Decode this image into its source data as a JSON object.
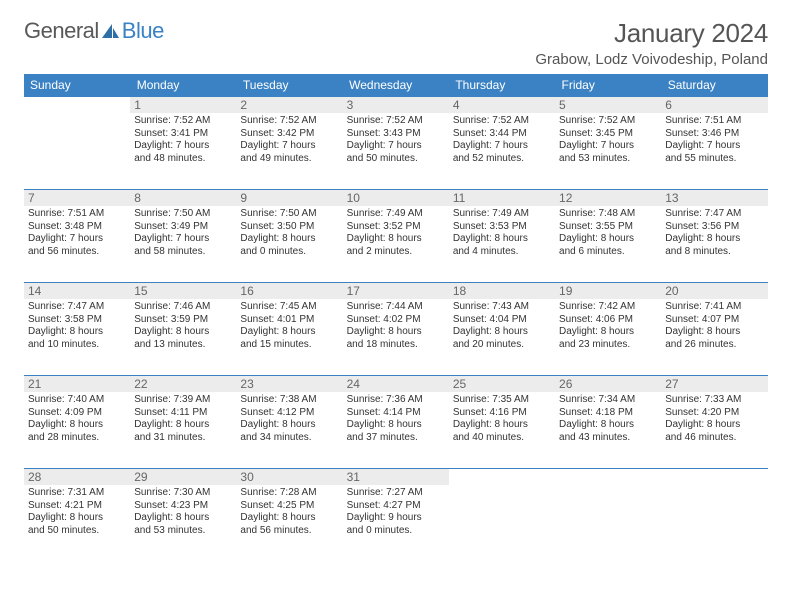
{
  "brand": {
    "word1": "General",
    "word2": "Blue"
  },
  "title": "January 2024",
  "location": "Grabow, Lodz Voivodeship, Poland",
  "colors": {
    "header_bg": "#3b82c4",
    "header_text": "#ffffff",
    "daynum_bg": "#ececec",
    "rule": "#3b82c4",
    "text": "#333333",
    "muted": "#666666",
    "brand_gray": "#595959",
    "brand_blue": "#3b82c4"
  },
  "fonts": {
    "family": "Arial",
    "title_size": 26,
    "th_size": 12,
    "cell_size": 10
  },
  "weekdays": [
    "Sunday",
    "Monday",
    "Tuesday",
    "Wednesday",
    "Thursday",
    "Friday",
    "Saturday"
  ],
  "grid": [
    [
      null,
      {
        "n": "1",
        "sr": "Sunrise: 7:52 AM",
        "ss": "Sunset: 3:41 PM",
        "d1": "Daylight: 7 hours",
        "d2": "and 48 minutes."
      },
      {
        "n": "2",
        "sr": "Sunrise: 7:52 AM",
        "ss": "Sunset: 3:42 PM",
        "d1": "Daylight: 7 hours",
        "d2": "and 49 minutes."
      },
      {
        "n": "3",
        "sr": "Sunrise: 7:52 AM",
        "ss": "Sunset: 3:43 PM",
        "d1": "Daylight: 7 hours",
        "d2": "and 50 minutes."
      },
      {
        "n": "4",
        "sr": "Sunrise: 7:52 AM",
        "ss": "Sunset: 3:44 PM",
        "d1": "Daylight: 7 hours",
        "d2": "and 52 minutes."
      },
      {
        "n": "5",
        "sr": "Sunrise: 7:52 AM",
        "ss": "Sunset: 3:45 PM",
        "d1": "Daylight: 7 hours",
        "d2": "and 53 minutes."
      },
      {
        "n": "6",
        "sr": "Sunrise: 7:51 AM",
        "ss": "Sunset: 3:46 PM",
        "d1": "Daylight: 7 hours",
        "d2": "and 55 minutes."
      }
    ],
    [
      {
        "n": "7",
        "sr": "Sunrise: 7:51 AM",
        "ss": "Sunset: 3:48 PM",
        "d1": "Daylight: 7 hours",
        "d2": "and 56 minutes."
      },
      {
        "n": "8",
        "sr": "Sunrise: 7:50 AM",
        "ss": "Sunset: 3:49 PM",
        "d1": "Daylight: 7 hours",
        "d2": "and 58 minutes."
      },
      {
        "n": "9",
        "sr": "Sunrise: 7:50 AM",
        "ss": "Sunset: 3:50 PM",
        "d1": "Daylight: 8 hours",
        "d2": "and 0 minutes."
      },
      {
        "n": "10",
        "sr": "Sunrise: 7:49 AM",
        "ss": "Sunset: 3:52 PM",
        "d1": "Daylight: 8 hours",
        "d2": "and 2 minutes."
      },
      {
        "n": "11",
        "sr": "Sunrise: 7:49 AM",
        "ss": "Sunset: 3:53 PM",
        "d1": "Daylight: 8 hours",
        "d2": "and 4 minutes."
      },
      {
        "n": "12",
        "sr": "Sunrise: 7:48 AM",
        "ss": "Sunset: 3:55 PM",
        "d1": "Daylight: 8 hours",
        "d2": "and 6 minutes."
      },
      {
        "n": "13",
        "sr": "Sunrise: 7:47 AM",
        "ss": "Sunset: 3:56 PM",
        "d1": "Daylight: 8 hours",
        "d2": "and 8 minutes."
      }
    ],
    [
      {
        "n": "14",
        "sr": "Sunrise: 7:47 AM",
        "ss": "Sunset: 3:58 PM",
        "d1": "Daylight: 8 hours",
        "d2": "and 10 minutes."
      },
      {
        "n": "15",
        "sr": "Sunrise: 7:46 AM",
        "ss": "Sunset: 3:59 PM",
        "d1": "Daylight: 8 hours",
        "d2": "and 13 minutes."
      },
      {
        "n": "16",
        "sr": "Sunrise: 7:45 AM",
        "ss": "Sunset: 4:01 PM",
        "d1": "Daylight: 8 hours",
        "d2": "and 15 minutes."
      },
      {
        "n": "17",
        "sr": "Sunrise: 7:44 AM",
        "ss": "Sunset: 4:02 PM",
        "d1": "Daylight: 8 hours",
        "d2": "and 18 minutes."
      },
      {
        "n": "18",
        "sr": "Sunrise: 7:43 AM",
        "ss": "Sunset: 4:04 PM",
        "d1": "Daylight: 8 hours",
        "d2": "and 20 minutes."
      },
      {
        "n": "19",
        "sr": "Sunrise: 7:42 AM",
        "ss": "Sunset: 4:06 PM",
        "d1": "Daylight: 8 hours",
        "d2": "and 23 minutes."
      },
      {
        "n": "20",
        "sr": "Sunrise: 7:41 AM",
        "ss": "Sunset: 4:07 PM",
        "d1": "Daylight: 8 hours",
        "d2": "and 26 minutes."
      }
    ],
    [
      {
        "n": "21",
        "sr": "Sunrise: 7:40 AM",
        "ss": "Sunset: 4:09 PM",
        "d1": "Daylight: 8 hours",
        "d2": "and 28 minutes."
      },
      {
        "n": "22",
        "sr": "Sunrise: 7:39 AM",
        "ss": "Sunset: 4:11 PM",
        "d1": "Daylight: 8 hours",
        "d2": "and 31 minutes."
      },
      {
        "n": "23",
        "sr": "Sunrise: 7:38 AM",
        "ss": "Sunset: 4:12 PM",
        "d1": "Daylight: 8 hours",
        "d2": "and 34 minutes."
      },
      {
        "n": "24",
        "sr": "Sunrise: 7:36 AM",
        "ss": "Sunset: 4:14 PM",
        "d1": "Daylight: 8 hours",
        "d2": "and 37 minutes."
      },
      {
        "n": "25",
        "sr": "Sunrise: 7:35 AM",
        "ss": "Sunset: 4:16 PM",
        "d1": "Daylight: 8 hours",
        "d2": "and 40 minutes."
      },
      {
        "n": "26",
        "sr": "Sunrise: 7:34 AM",
        "ss": "Sunset: 4:18 PM",
        "d1": "Daylight: 8 hours",
        "d2": "and 43 minutes."
      },
      {
        "n": "27",
        "sr": "Sunrise: 7:33 AM",
        "ss": "Sunset: 4:20 PM",
        "d1": "Daylight: 8 hours",
        "d2": "and 46 minutes."
      }
    ],
    [
      {
        "n": "28",
        "sr": "Sunrise: 7:31 AM",
        "ss": "Sunset: 4:21 PM",
        "d1": "Daylight: 8 hours",
        "d2": "and 50 minutes."
      },
      {
        "n": "29",
        "sr": "Sunrise: 7:30 AM",
        "ss": "Sunset: 4:23 PM",
        "d1": "Daylight: 8 hours",
        "d2": "and 53 minutes."
      },
      {
        "n": "30",
        "sr": "Sunrise: 7:28 AM",
        "ss": "Sunset: 4:25 PM",
        "d1": "Daylight: 8 hours",
        "d2": "and 56 minutes."
      },
      {
        "n": "31",
        "sr": "Sunrise: 7:27 AM",
        "ss": "Sunset: 4:27 PM",
        "d1": "Daylight: 9 hours",
        "d2": "and 0 minutes."
      },
      null,
      null,
      null
    ]
  ]
}
